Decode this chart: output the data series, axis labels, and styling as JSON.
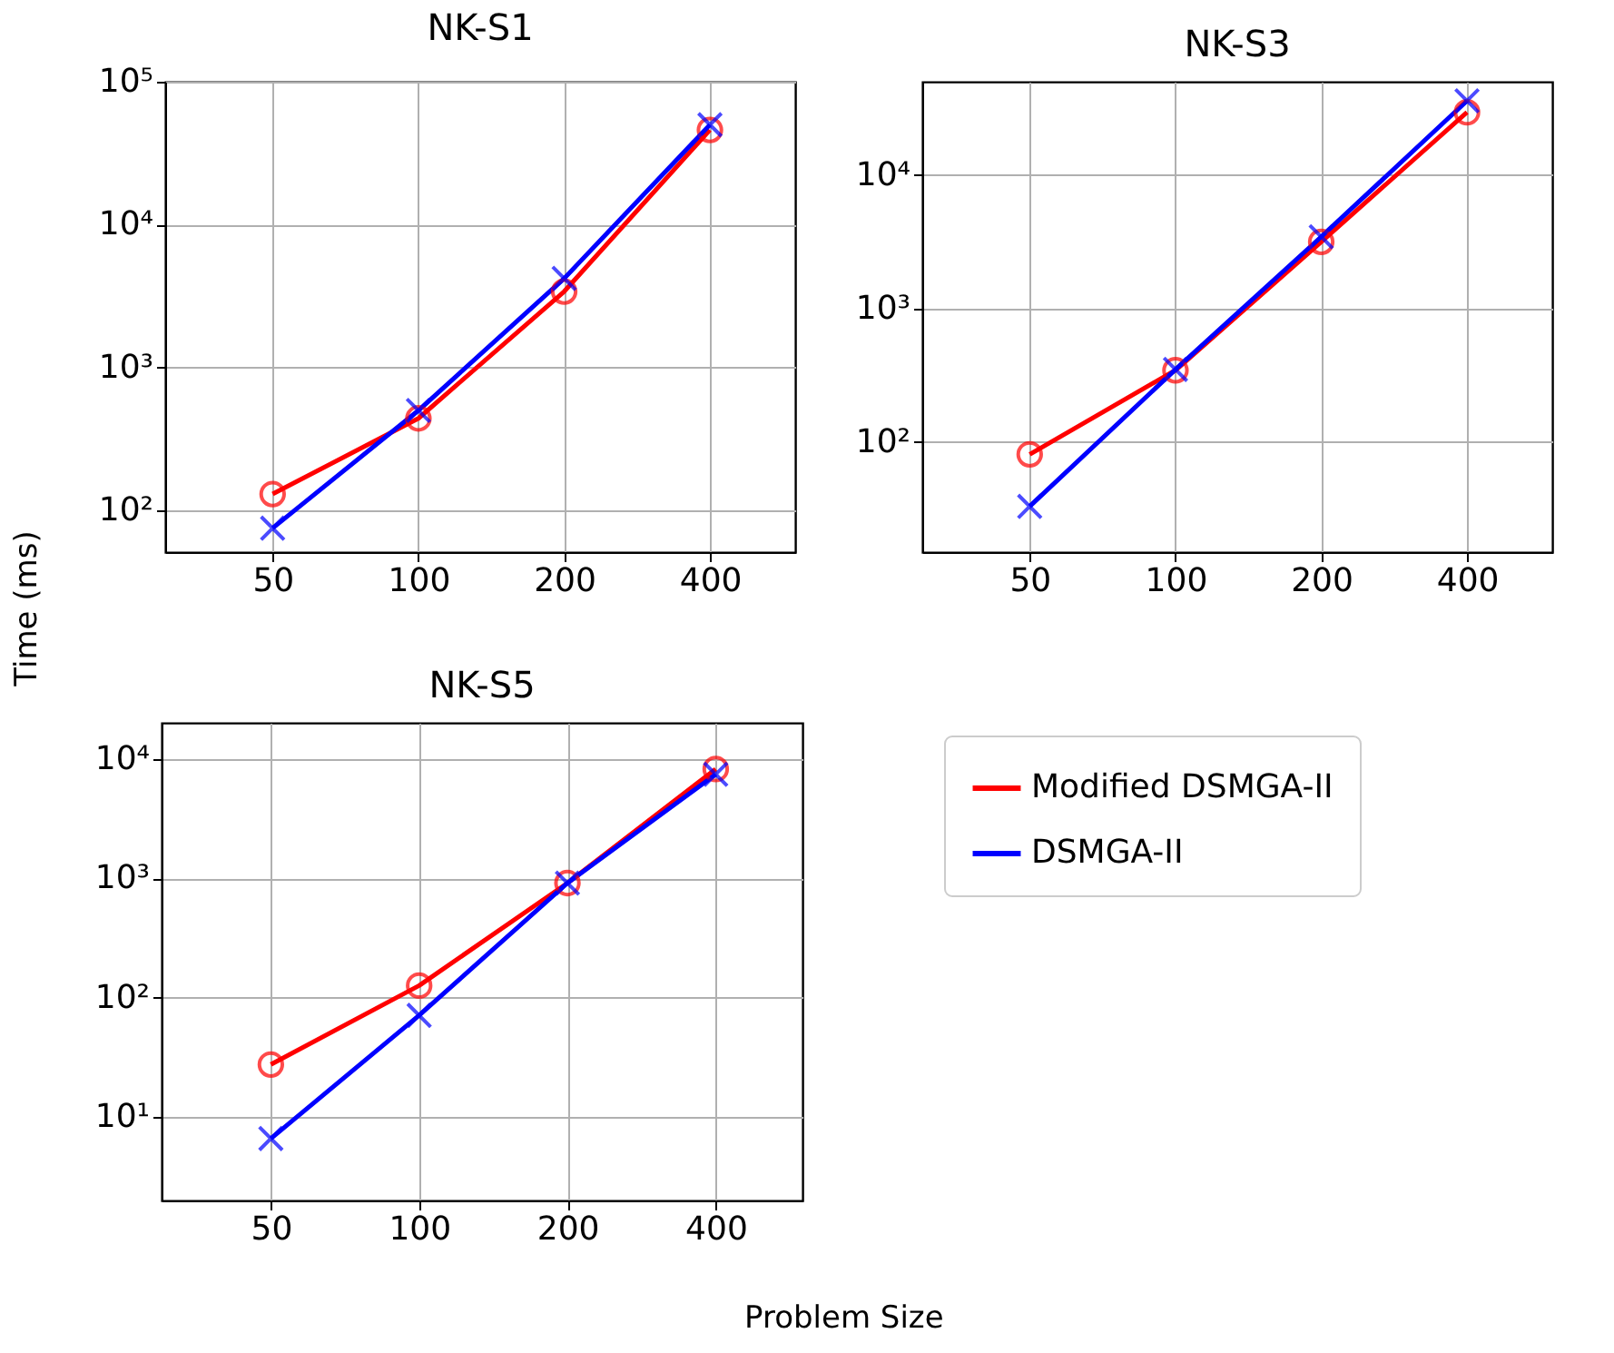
{
  "chart_data": [
    {
      "type": "line",
      "title": "NK-S1",
      "ylabel": "Time (ms)",
      "x": [
        50,
        100,
        200,
        400
      ],
      "xlim": [
        30,
        600
      ],
      "xticks": [
        50,
        100,
        200,
        400
      ],
      "log": "xy",
      "ylim": [
        51,
        100000
      ],
      "yticks": [
        {
          "value": 100,
          "label": "10²"
        },
        {
          "value": 1000,
          "label": "10³"
        },
        {
          "value": 10000,
          "label": "10⁴"
        },
        {
          "value": 100000,
          "label": "10⁵"
        }
      ],
      "grid": true,
      "series": [
        {
          "color": "#ff0000",
          "marker": "circle",
          "values": [
            130,
            440,
            3400,
            46000
          ]
        },
        {
          "color": "#0000ff",
          "marker": "cross",
          "values": [
            75,
            500,
            4200,
            50000
          ]
        }
      ]
    },
    {
      "type": "line",
      "title": "NK-S3",
      "x": [
        50,
        100,
        200,
        400
      ],
      "xlim": [
        30,
        600
      ],
      "xticks": [
        50,
        100,
        200,
        400
      ],
      "log": "xy",
      "ylim": [
        15,
        50000
      ],
      "yticks": [
        {
          "value": 100,
          "label": "10²"
        },
        {
          "value": 1000,
          "label": "10³"
        },
        {
          "value": 10000,
          "label": "10⁴"
        }
      ],
      "grid": true,
      "series": [
        {
          "color": "#ff0000",
          "marker": "circle",
          "values": [
            81,
            345,
            3160,
            29500
          ]
        },
        {
          "color": "#0000ff",
          "marker": "cross",
          "values": [
            33,
            350,
            3450,
            36000
          ]
        }
      ]
    },
    {
      "type": "line",
      "title": "NK-S5",
      "xlabel": "Problem Size",
      "x": [
        50,
        100,
        200,
        400
      ],
      "xlim": [
        30,
        600
      ],
      "xticks": [
        50,
        100,
        200,
        400
      ],
      "log": "xy",
      "ylim": [
        2,
        20000
      ],
      "yticks": [
        {
          "value": 10,
          "label": "10¹"
        },
        {
          "value": 100,
          "label": "10²"
        },
        {
          "value": 1000,
          "label": "10³"
        },
        {
          "value": 10000,
          "label": "10⁴"
        }
      ],
      "grid": true,
      "legend": "right",
      "series": [
        {
          "name": "Modified DSMGA-II",
          "color": "#ff0000",
          "marker": "circle",
          "values": [
            27.5,
            126,
            910,
            8200
          ]
        },
        {
          "name": "DSMGA-II",
          "color": "#0000ff",
          "marker": "cross",
          "values": [
            6.6,
            71,
            910,
            7400
          ]
        }
      ]
    }
  ]
}
